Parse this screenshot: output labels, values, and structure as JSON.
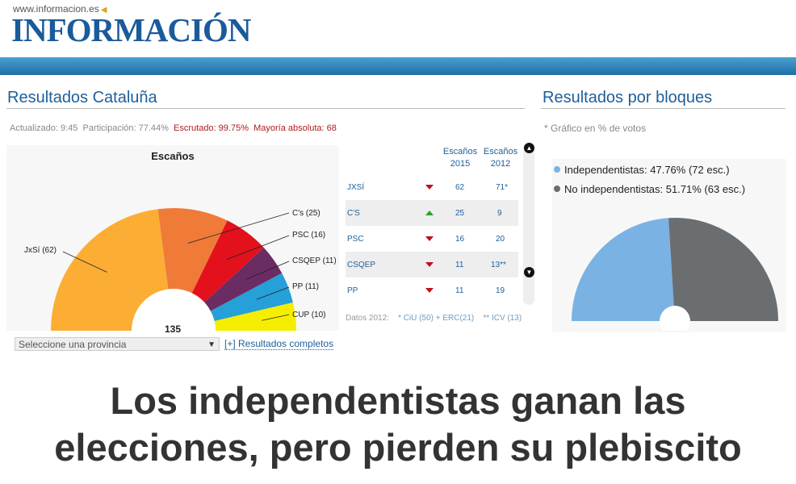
{
  "site": {
    "url": "www.informacion.es",
    "logo": "INFORMACIÓN"
  },
  "results": {
    "title": "Resultados Cataluña",
    "meta": {
      "updated": "Actualizado: 9:45",
      "participation": "Participación: 77.44%",
      "scrutinized": "Escrutado: 99.75%",
      "majority": "Mayoría absoluta: 68"
    },
    "chart_title": "Escaños",
    "total": "135",
    "select_placeholder": "Seleccione una provincia",
    "full_link": "[+] Resultados completos"
  },
  "chart_data": [
    {
      "type": "pie",
      "title": "Escaños",
      "layout": "semicircle (parliament seats)",
      "total": 135,
      "categories": [
        "JxSí",
        "C's",
        "PSC",
        "CSQEP",
        "PP",
        "CUP"
      ],
      "values": [
        62,
        25,
        16,
        11,
        11,
        10
      ],
      "labels": [
        "JxSí (62)",
        "C's (25)",
        "PSC (16)",
        "CSQEP (11)",
        "PP (11)",
        "CUP (10)"
      ],
      "colors": [
        "#fbae33",
        "#f07a38",
        "#e3111c",
        "#6b2c63",
        "#25a0d8",
        "#f6ee00"
      ]
    },
    {
      "type": "pie",
      "layout": "semicircle",
      "categories": [
        "Independentistas",
        "No independentistas"
      ],
      "values": [
        47.76,
        51.71
      ],
      "seats": [
        72,
        63
      ],
      "colors": [
        "#7ab2e3",
        "#6a6e71"
      ]
    }
  ],
  "table": {
    "headers": [
      [
        "Escaños",
        "2015"
      ],
      [
        "Escaños",
        "2012"
      ]
    ],
    "rows": [
      {
        "party": "JXSÍ",
        "trend": "down",
        "s2015": "62",
        "s2012": "71*"
      },
      {
        "party": "C'S",
        "trend": "up",
        "s2015": "25",
        "s2012": "9"
      },
      {
        "party": "PSC",
        "trend": "down",
        "s2015": "16",
        "s2012": "20"
      },
      {
        "party": "CSQEP",
        "trend": "down",
        "s2015": "11",
        "s2012": "13**"
      },
      {
        "party": "PP",
        "trend": "down",
        "s2015": "11",
        "s2012": "19"
      }
    ],
    "footnote_label": "Datos 2012:",
    "footnote_1": "* CiU (50) + ERC(21)",
    "footnote_2": "** ICV (13)"
  },
  "blocks": {
    "title": "Resultados por bloques",
    "note": "* Gráfico en % de votos",
    "legend": [
      "Independentistas: 47.76% (72 esc.)",
      "No independentistas: 51.71% (63 esc.)"
    ]
  },
  "headline": {
    "line1": "Los independentistas ganan las",
    "line2": "elecciones, pero pierden su plebiscito"
  },
  "colors": {
    "brand": "#1a5b9a",
    "accent_red": "#b01b1b"
  }
}
